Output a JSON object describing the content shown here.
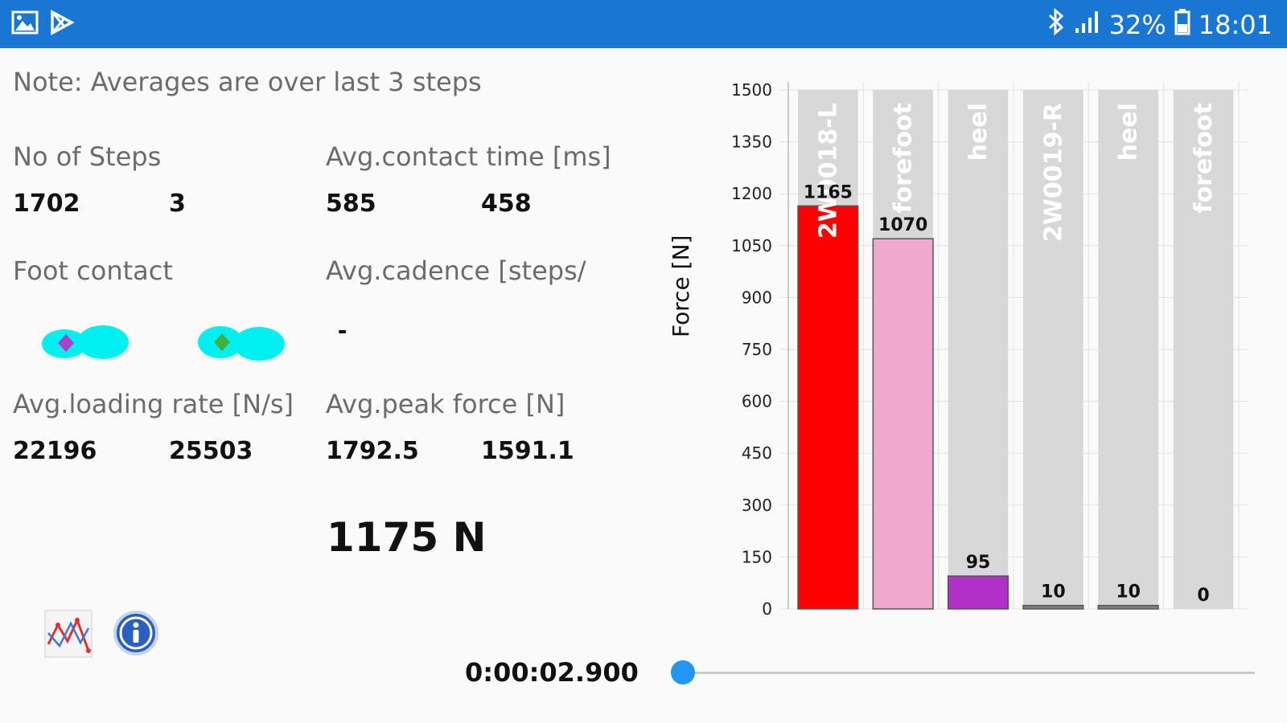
{
  "status_bar": {
    "battery": "32%",
    "time": "18:01",
    "icons": [
      "gallery-icon",
      "play-store-icon",
      "bluetooth-icon",
      "signal-icon",
      "battery-icon"
    ]
  },
  "note": "Note: Averages are over last 3 steps",
  "metrics": {
    "steps": {
      "label": "No of Steps",
      "left": "1702",
      "right": "3"
    },
    "contact_time": {
      "label": "Avg.contact time [ms]",
      "left": "585",
      "right": "458"
    },
    "foot_contact": {
      "label": "Foot contact"
    },
    "cadence": {
      "label": "Avg.cadence [steps/",
      "value": "-"
    },
    "loading_rate": {
      "label": "Avg.loading rate [N/s]",
      "left": "22196",
      "right": "25503"
    },
    "peak_force": {
      "label": "Avg.peak force [N]",
      "left": "1792.5",
      "right": "1591.1"
    }
  },
  "current_force": "1175 N",
  "timer": "0:00:02.900",
  "slider": {
    "position": 0.0
  },
  "colors": {
    "accent": "#1976d2",
    "foot": "#00f0f0",
    "left_marker": "#b040c8",
    "right_marker": "#40b040"
  },
  "chart_data": {
    "type": "bar",
    "ylabel": "Force [N]",
    "ylim": [
      0,
      1500
    ],
    "yticks": [
      "0",
      "150",
      "300",
      "450",
      "600",
      "750",
      "900",
      "1050",
      "1200",
      "1350",
      "1500"
    ],
    "categories": [
      "2W0018-L",
      "forefoot",
      "heel",
      "2W0019-R",
      "heel",
      "forefoot"
    ],
    "values": [
      1165,
      1070,
      95,
      10,
      10,
      0
    ],
    "value_labels": [
      "1165",
      "1070",
      "95",
      "10",
      "10",
      "0"
    ],
    "colors": [
      "#ff0000",
      "#f0a8cc",
      "#b030c8",
      "#808080",
      "#808080",
      "#d8d8d8"
    ],
    "background_color": "#d8d8d8",
    "grid": true
  }
}
